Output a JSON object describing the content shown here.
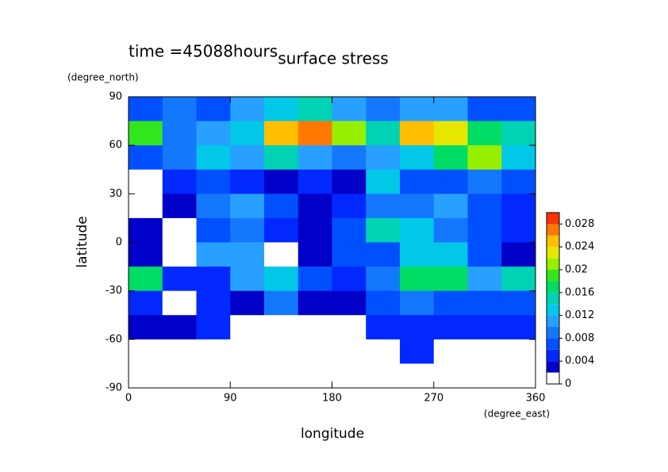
{
  "chart_data": {
    "type": "heatmap",
    "title": "surface stress",
    "subtitle": "time =45088hours",
    "xlabel": "longitude",
    "ylabel": "latitude",
    "xunit": "(degree_east)",
    "yunit": "(degree_north)",
    "xlim": [
      0,
      360
    ],
    "ylim": [
      -90,
      90
    ],
    "xticks": [
      0,
      90,
      180,
      270,
      360
    ],
    "yticks": [
      -90,
      -60,
      -30,
      0,
      30,
      60,
      90
    ],
    "x": [
      15,
      45,
      75,
      105,
      135,
      165,
      195,
      225,
      255,
      285,
      315,
      345
    ],
    "y": [
      82.5,
      67.5,
      52.5,
      37.5,
      22.5,
      7.5,
      -7.5,
      -22.5,
      -37.5,
      -52.5,
      -67.5,
      -82.5
    ],
    "z": [
      [
        0.006,
        0.008,
        0.006,
        0.01,
        0.012,
        0.014,
        0.01,
        0.008,
        0.01,
        0.01,
        0.006,
        0.006
      ],
      [
        0.018,
        0.008,
        0.01,
        0.012,
        0.024,
        0.026,
        0.02,
        0.014,
        0.024,
        0.022,
        0.016,
        0.014
      ],
      [
        0.006,
        0.008,
        0.012,
        0.01,
        0.014,
        0.01,
        0.008,
        0.01,
        0.012,
        0.016,
        0.02,
        0.012
      ],
      [
        0,
        0.004,
        0.006,
        0.004,
        0.002,
        0.004,
        0.002,
        0.012,
        0.006,
        0.006,
        0.008,
        0.006
      ],
      [
        0,
        0.002,
        0.008,
        0.01,
        0.006,
        0.002,
        0.004,
        0.008,
        0.008,
        0.01,
        0.006,
        0.004
      ],
      [
        0.002,
        0,
        0.006,
        0.008,
        0.004,
        0.002,
        0.006,
        0.014,
        0.012,
        0.008,
        0.006,
        0.004
      ],
      [
        0.002,
        0,
        0.01,
        0.01,
        0,
        0.002,
        0.006,
        0.006,
        0.012,
        0.012,
        0.006,
        0.002
      ],
      [
        0.016,
        0.004,
        0.004,
        0.01,
        0.012,
        0.006,
        0.004,
        0.008,
        0.016,
        0.016,
        0.01,
        0.014
      ],
      [
        0.004,
        0,
        0.004,
        0.002,
        0.008,
        0.002,
        0.002,
        0.006,
        0.008,
        0.006,
        0.006,
        0.006
      ],
      [
        0.002,
        0.002,
        0.004,
        0,
        0,
        0,
        0,
        0.004,
        0.004,
        0.004,
        0.004,
        0.004
      ],
      [
        0,
        0,
        0,
        0,
        0,
        0,
        0,
        0,
        0.004,
        0,
        0,
        0
      ],
      [
        0,
        0,
        0,
        0,
        0,
        0,
        0,
        0,
        0,
        0,
        0,
        0
      ]
    ],
    "levels": [
      0,
      0.002,
      0.004,
      0.006,
      0.008,
      0.01,
      0.012,
      0.014,
      0.016,
      0.018,
      0.02,
      0.022,
      0.024,
      0.026,
      0.028,
      0.03
    ],
    "colors": [
      "#ffffff",
      "#0000c8",
      "#0028ff",
      "#0050ff",
      "#1478ff",
      "#28a0ff",
      "#00c8e6",
      "#00d2b4",
      "#00dc64",
      "#32e61e",
      "#96f000",
      "#e6e600",
      "#ffbe00",
      "#ff7800",
      "#ff3200"
    ],
    "colorbar_ticks": [
      0,
      0.004,
      0.008,
      0.012,
      0.016,
      0.02,
      0.024,
      0.028
    ]
  }
}
